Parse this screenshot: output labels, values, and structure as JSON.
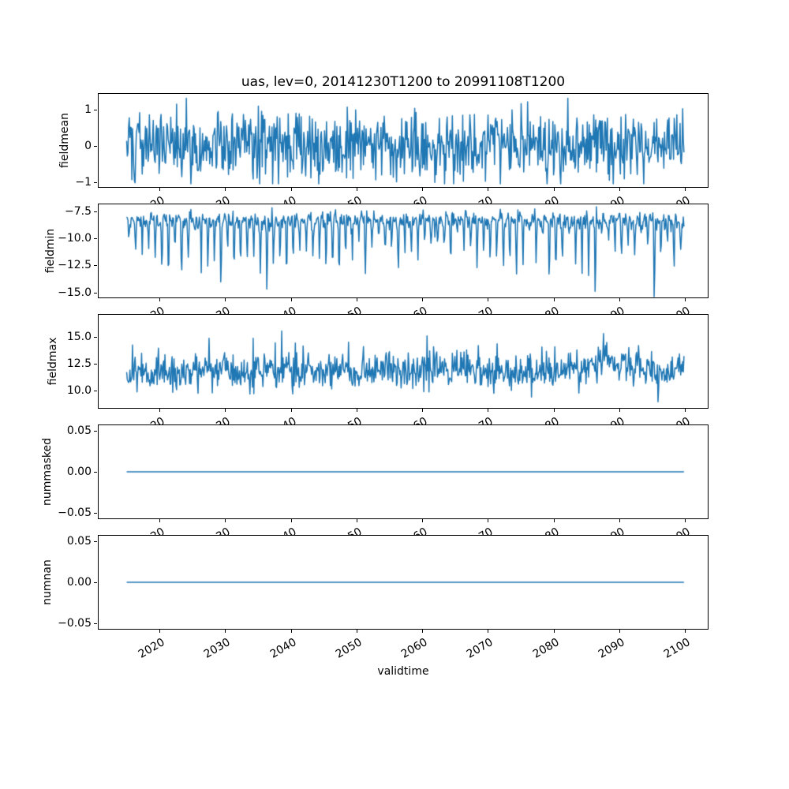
{
  "chart_data": {
    "type": "line",
    "title": "uas, lev=0, 20141230T1200 to 20991108T1200",
    "xlabel": "validtime",
    "line_color": "#1f77b4",
    "axis_color": "#000000",
    "background_color": "#ffffff",
    "legend": "none",
    "grid": false,
    "x_axis": {
      "lim": [
        2010.6,
        2103.6
      ],
      "ticks": [
        2020,
        2030,
        2040,
        2050,
        2060,
        2070,
        2080,
        2090,
        2100
      ],
      "tick_labels": [
        "2020",
        "2030",
        "2040",
        "2050",
        "2060",
        "2070",
        "2080",
        "2090",
        "2100"
      ],
      "tick_rotation_deg": 30,
      "data_start": 2014.99,
      "data_end": 2099.86,
      "n_points": 860
    },
    "subplots": [
      {
        "id": "fieldmean",
        "ylabel": "fieldmean",
        "ylim": [
          -1.16,
          1.46
        ],
        "yticks": [
          {
            "v": 1,
            "label": "1"
          },
          {
            "v": 0,
            "label": "0"
          },
          {
            "v": -1,
            "label": "−1"
          }
        ],
        "series": {
          "kind": "noise",
          "seed": 101,
          "mean": 0.05,
          "std": 0.48,
          "clip": [
            -1.05,
            1.32
          ]
        }
      },
      {
        "id": "fieldmin",
        "ylabel": "fieldmin",
        "ylim": [
          -15.55,
          -6.75
        ],
        "yticks": [
          {
            "v": -7.5,
            "label": "−7.5"
          },
          {
            "v": -10,
            "label": "−10.0"
          },
          {
            "v": -12.5,
            "label": "−12.5"
          },
          {
            "v": -15,
            "label": "−15.0"
          }
        ],
        "series": {
          "kind": "seasonal_dip",
          "seed": 202,
          "base": -8.3,
          "std": 0.42,
          "phase": 0.1,
          "dip_power": 6,
          "dip_min": 1.0,
          "dip_max": 5.5,
          "deep_prob": 0.12,
          "deep_extra": 2.5,
          "deep_year": 2095,
          "deep_amp": 8.0,
          "clip": [
            -15.4,
            -7.05
          ]
        }
      },
      {
        "id": "fieldmax",
        "ylabel": "fieldmax",
        "ylim": [
          8.3,
          17.1
        ],
        "yticks": [
          {
            "v": 15,
            "label": "15.0"
          },
          {
            "v": 12.5,
            "label": "12.5"
          },
          {
            "v": 10,
            "label": "10.0"
          }
        ],
        "series": {
          "kind": "noise_spikes",
          "seed": 303,
          "mean": 11.6,
          "std": 0.8,
          "trend_per_year": 0.004,
          "trend_ref": 2015,
          "spike_prob": 0.05,
          "spike_min": 0.7,
          "spike_max": 2.6,
          "bump_center": 2087.5,
          "bump_sigma": 2.5,
          "bump_amp": 0.8,
          "forced_spikes": [
            {
              "t": 2087.6,
              "amp": 3.4
            },
            {
              "t": 2099.2,
              "amp": 2.4
            }
          ],
          "clip": [
            8.95,
            16.55
          ]
        }
      },
      {
        "id": "nummasked",
        "ylabel": "nummasked",
        "ylim": [
          -0.0577,
          0.0577
        ],
        "yticks": [
          {
            "v": 0.05,
            "label": "0.05"
          },
          {
            "v": 0,
            "label": "0.00"
          },
          {
            "v": -0.05,
            "label": "−0.05"
          }
        ],
        "series": {
          "kind": "constant",
          "value": 0
        }
      },
      {
        "id": "numnan",
        "ylabel": "numnan",
        "ylim": [
          -0.0577,
          0.0577
        ],
        "yticks": [
          {
            "v": 0.05,
            "label": "0.05"
          },
          {
            "v": 0,
            "label": "0.00"
          },
          {
            "v": -0.05,
            "label": "−0.05"
          }
        ],
        "series": {
          "kind": "constant",
          "value": 0
        }
      }
    ]
  }
}
